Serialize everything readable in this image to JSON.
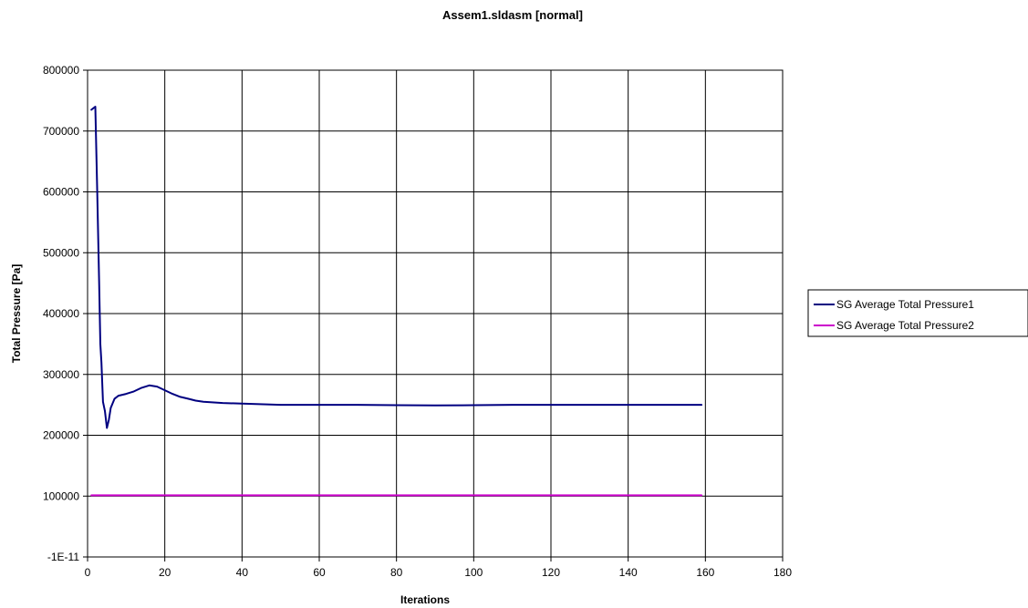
{
  "chart_data": {
    "type": "line",
    "title": "Assem1.sldasm [normal]",
    "xlabel": "Iterations",
    "ylabel": "Total Pressure [Pa]",
    "xlim": [
      0,
      180
    ],
    "ylim": [
      0,
      800000
    ],
    "x_ticks": [
      0,
      20,
      40,
      60,
      80,
      100,
      120,
      140,
      160,
      180
    ],
    "x_tick_labels": [
      "0",
      "20",
      "40",
      "60",
      "80",
      "100",
      "120",
      "140",
      "160",
      "180"
    ],
    "y_ticks": [
      0,
      100000,
      200000,
      300000,
      400000,
      500000,
      600000,
      700000,
      800000
    ],
    "y_tick_labels": [
      "-1E-11",
      "100000",
      "200000",
      "300000",
      "400000",
      "500000",
      "600000",
      "700000",
      "800000"
    ],
    "grid": true,
    "legend_position": "right",
    "series": [
      {
        "name": "SG Average Total Pressure1",
        "color": "#000080",
        "x": [
          1,
          2,
          2.5,
          3,
          3.3,
          3.6,
          4,
          4.5,
          5,
          5.5,
          6,
          7,
          8,
          10,
          12,
          14,
          16,
          18,
          20,
          22,
          24,
          26,
          28,
          30,
          35,
          40,
          50,
          60,
          70,
          80,
          90,
          100,
          110,
          120,
          130,
          140,
          150,
          159
        ],
        "values": [
          735000,
          740000,
          600000,
          450000,
          350000,
          320000,
          255000,
          240000,
          212000,
          225000,
          245000,
          260000,
          265000,
          268000,
          272000,
          278000,
          282000,
          280000,
          274000,
          268000,
          263000,
          260000,
          257000,
          255000,
          253000,
          252000,
          250000,
          250000,
          250000,
          249500,
          249000,
          249500,
          250000,
          250000,
          250000,
          250000,
          250000,
          250000
        ]
      },
      {
        "name": "SG Average Total Pressure2",
        "color": "#cc00cc",
        "x": [
          1,
          20,
          40,
          60,
          80,
          100,
          120,
          140,
          159
        ],
        "values": [
          101325,
          101325,
          101325,
          101325,
          101325,
          101325,
          101325,
          101325,
          101325
        ]
      }
    ]
  }
}
